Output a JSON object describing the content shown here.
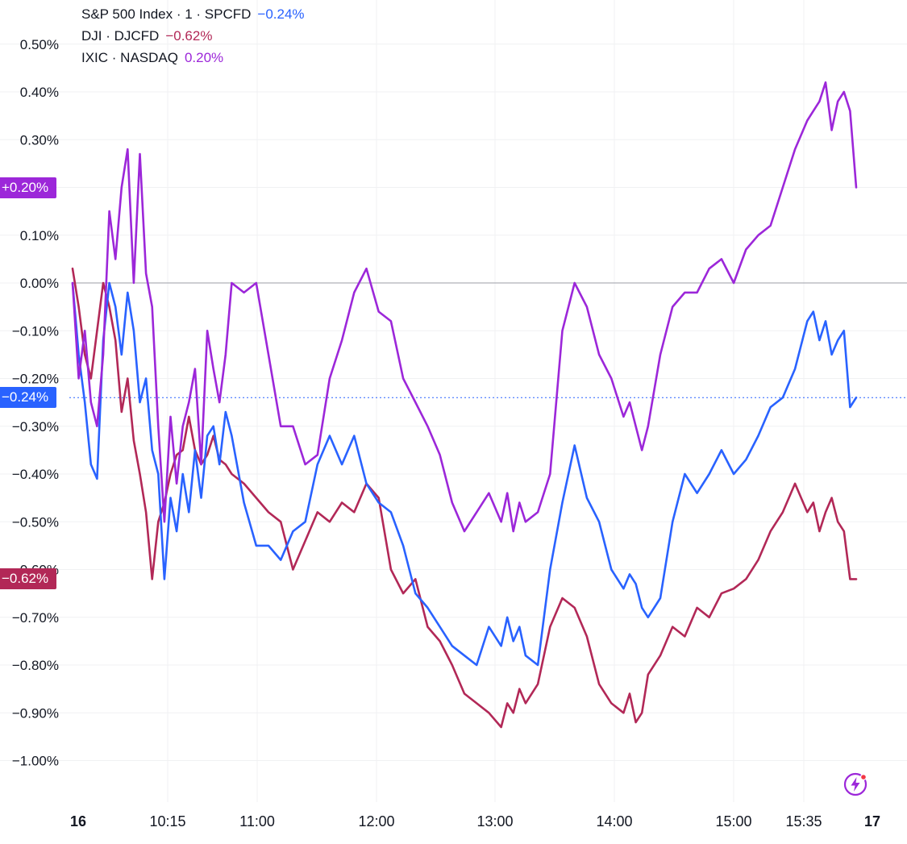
{
  "legend": [
    {
      "label": "S&P 500 Index · 1 · SPCFD",
      "value": "−0.24%",
      "color": "#2962ff"
    },
    {
      "label": "DJI · DJCFD",
      "value": "−0.62%",
      "color": "#b22857"
    },
    {
      "label": "IXIC · NASDAQ",
      "value": "0.20%",
      "color": "#9c27d9"
    }
  ],
  "badges": [
    {
      "name": "ixic-last-value-badge",
      "text": "+0.20%",
      "value": 0.2,
      "color": "#9c27d9"
    },
    {
      "name": "spx-last-value-badge",
      "text": "−0.24%",
      "value": -0.24,
      "color": "#2962ff"
    },
    {
      "name": "dji-last-value-badge",
      "text": "−0.62%",
      "value": -0.62,
      "color": "#b22857"
    }
  ],
  "chart_data": {
    "type": "line",
    "title": "",
    "xlabel": "",
    "ylabel": "",
    "unit": "%",
    "ylim": [
      -1.05,
      0.58
    ],
    "xlim": [
      9.5,
      16.1
    ],
    "grid": true,
    "y_ticks": [
      {
        "value": 0.5,
        "label": "0.50%"
      },
      {
        "value": 0.4,
        "label": "0.40%"
      },
      {
        "value": 0.3,
        "label": "0.30%"
      },
      {
        "value": 0.1,
        "label": "0.10%"
      },
      {
        "value": 0.0,
        "label": "0.00%"
      },
      {
        "value": -0.1,
        "label": "−0.10%"
      },
      {
        "value": -0.2,
        "label": "−0.20%"
      },
      {
        "value": -0.3,
        "label": "−0.30%"
      },
      {
        "value": -0.4,
        "label": "−0.40%"
      },
      {
        "value": -0.5,
        "label": "−0.50%"
      },
      {
        "value": -0.6,
        "label": "−0.60%"
      },
      {
        "value": -0.7,
        "label": "−0.70%"
      },
      {
        "value": -0.8,
        "label": "−0.80%"
      },
      {
        "value": -0.9,
        "label": "−0.90%"
      },
      {
        "value": -1.0,
        "label": "−1.00%"
      }
    ],
    "x_ticks": [
      {
        "value": 9.5,
        "label": "16",
        "bold": true
      },
      {
        "value": 10.25,
        "label": "10:15",
        "bold": false
      },
      {
        "value": 11.0,
        "label": "11:00",
        "bold": false
      },
      {
        "value": 12.0,
        "label": "12:00",
        "bold": false
      },
      {
        "value": 13.0,
        "label": "13:00",
        "bold": false
      },
      {
        "value": 14.0,
        "label": "14:00",
        "bold": false
      },
      {
        "value": 15.0,
        "label": "15:00",
        "bold": false
      },
      {
        "value": 15.5833,
        "label": "15:35",
        "bold": false
      },
      {
        "value": 16.0,
        "label": "17",
        "bold": true
      }
    ],
    "series": [
      {
        "name": "S&P 500 Index",
        "color": "#2962ff",
        "x": [
          9.5,
          9.55,
          9.6,
          9.65,
          9.7,
          9.75,
          9.8,
          9.85,
          9.9,
          9.95,
          10.0,
          10.05,
          10.1,
          10.15,
          10.2,
          10.25,
          10.3,
          10.35,
          10.4,
          10.45,
          10.5,
          10.55,
          10.6,
          10.65,
          10.7,
          10.75,
          10.8,
          10.9,
          11.0,
          11.1,
          11.2,
          11.3,
          11.4,
          11.5,
          11.6,
          11.7,
          11.8,
          11.9,
          12.0,
          12.1,
          12.2,
          12.3,
          12.4,
          12.5,
          12.6,
          12.7,
          12.8,
          12.9,
          13.0,
          13.05,
          13.1,
          13.15,
          13.2,
          13.3,
          13.4,
          13.5,
          13.6,
          13.7,
          13.8,
          13.9,
          14.0,
          14.05,
          14.1,
          14.15,
          14.2,
          14.3,
          14.4,
          14.5,
          14.6,
          14.7,
          14.8,
          14.9,
          15.0,
          15.1,
          15.2,
          15.3,
          15.4,
          15.5,
          15.55,
          15.6,
          15.65,
          15.7,
          15.75,
          15.8,
          15.85,
          15.9
        ],
        "values": [
          0.0,
          -0.15,
          -0.25,
          -0.38,
          -0.41,
          -0.12,
          0.0,
          -0.05,
          -0.15,
          -0.02,
          -0.1,
          -0.25,
          -0.2,
          -0.35,
          -0.4,
          -0.62,
          -0.45,
          -0.52,
          -0.4,
          -0.48,
          -0.35,
          -0.45,
          -0.32,
          -0.3,
          -0.38,
          -0.27,
          -0.32,
          -0.46,
          -0.55,
          -0.55,
          -0.58,
          -0.52,
          -0.5,
          -0.38,
          -0.32,
          -0.38,
          -0.32,
          -0.42,
          -0.46,
          -0.48,
          -0.55,
          -0.65,
          -0.68,
          -0.72,
          -0.76,
          -0.78,
          -0.8,
          -0.72,
          -0.76,
          -0.7,
          -0.75,
          -0.72,
          -0.78,
          -0.8,
          -0.6,
          -0.46,
          -0.34,
          -0.45,
          -0.5,
          -0.6,
          -0.64,
          -0.61,
          -0.63,
          -0.68,
          -0.7,
          -0.66,
          -0.5,
          -0.4,
          -0.44,
          -0.4,
          -0.35,
          -0.4,
          -0.37,
          -0.32,
          -0.26,
          -0.24,
          -0.18,
          -0.08,
          -0.06,
          -0.12,
          -0.08,
          -0.15,
          -0.12,
          -0.1,
          -0.26,
          -0.24
        ]
      },
      {
        "name": "DJI",
        "color": "#b22857",
        "x": [
          9.5,
          9.55,
          9.6,
          9.65,
          9.7,
          9.75,
          9.8,
          9.85,
          9.9,
          9.95,
          10.0,
          10.05,
          10.1,
          10.15,
          10.2,
          10.25,
          10.3,
          10.35,
          10.4,
          10.45,
          10.5,
          10.55,
          10.6,
          10.65,
          10.7,
          10.75,
          10.8,
          10.9,
          11.0,
          11.1,
          11.2,
          11.3,
          11.4,
          11.5,
          11.6,
          11.7,
          11.8,
          11.9,
          12.0,
          12.1,
          12.2,
          12.3,
          12.4,
          12.5,
          12.6,
          12.7,
          12.8,
          12.9,
          13.0,
          13.05,
          13.1,
          13.15,
          13.2,
          13.3,
          13.4,
          13.5,
          13.6,
          13.7,
          13.8,
          13.9,
          14.0,
          14.05,
          14.1,
          14.15,
          14.2,
          14.3,
          14.4,
          14.5,
          14.6,
          14.7,
          14.8,
          14.9,
          15.0,
          15.1,
          15.2,
          15.3,
          15.4,
          15.5,
          15.55,
          15.6,
          15.65,
          15.7,
          15.75,
          15.8,
          15.85,
          15.9
        ],
        "values": [
          0.03,
          -0.05,
          -0.15,
          -0.2,
          -0.1,
          0.0,
          -0.05,
          -0.12,
          -0.27,
          -0.2,
          -0.33,
          -0.4,
          -0.48,
          -0.62,
          -0.5,
          -0.46,
          -0.4,
          -0.36,
          -0.35,
          -0.28,
          -0.35,
          -0.38,
          -0.36,
          -0.32,
          -0.37,
          -0.38,
          -0.4,
          -0.42,
          -0.45,
          -0.48,
          -0.5,
          -0.6,
          -0.54,
          -0.48,
          -0.5,
          -0.46,
          -0.48,
          -0.42,
          -0.45,
          -0.6,
          -0.65,
          -0.62,
          -0.72,
          -0.75,
          -0.8,
          -0.86,
          -0.88,
          -0.9,
          -0.93,
          -0.88,
          -0.9,
          -0.85,
          -0.88,
          -0.84,
          -0.72,
          -0.66,
          -0.68,
          -0.74,
          -0.84,
          -0.88,
          -0.9,
          -0.86,
          -0.92,
          -0.9,
          -0.82,
          -0.78,
          -0.72,
          -0.74,
          -0.68,
          -0.7,
          -0.65,
          -0.64,
          -0.62,
          -0.58,
          -0.52,
          -0.48,
          -0.42,
          -0.48,
          -0.46,
          -0.52,
          -0.48,
          -0.45,
          -0.5,
          -0.52,
          -0.62,
          -0.62
        ]
      },
      {
        "name": "IXIC",
        "color": "#9c27d9",
        "x": [
          9.5,
          9.55,
          9.6,
          9.65,
          9.7,
          9.75,
          9.8,
          9.85,
          9.9,
          9.95,
          10.0,
          10.05,
          10.1,
          10.15,
          10.2,
          10.25,
          10.3,
          10.35,
          10.4,
          10.45,
          10.5,
          10.55,
          10.6,
          10.65,
          10.7,
          10.75,
          10.8,
          10.9,
          11.0,
          11.1,
          11.2,
          11.3,
          11.4,
          11.5,
          11.6,
          11.7,
          11.8,
          11.9,
          12.0,
          12.1,
          12.2,
          12.3,
          12.4,
          12.5,
          12.6,
          12.7,
          12.8,
          12.9,
          13.0,
          13.05,
          13.1,
          13.15,
          13.2,
          13.3,
          13.4,
          13.5,
          13.6,
          13.7,
          13.8,
          13.9,
          14.0,
          14.05,
          14.1,
          14.15,
          14.2,
          14.3,
          14.4,
          14.5,
          14.6,
          14.7,
          14.8,
          14.9,
          15.0,
          15.1,
          15.2,
          15.3,
          15.4,
          15.5,
          15.55,
          15.6,
          15.65,
          15.7,
          15.75,
          15.8,
          15.85,
          15.9
        ],
        "values": [
          0.0,
          -0.2,
          -0.1,
          -0.25,
          -0.3,
          -0.15,
          0.15,
          0.05,
          0.2,
          0.28,
          0.0,
          0.27,
          0.02,
          -0.05,
          -0.3,
          -0.5,
          -0.28,
          -0.42,
          -0.3,
          -0.25,
          -0.18,
          -0.38,
          -0.1,
          -0.18,
          -0.25,
          -0.15,
          0.0,
          -0.02,
          0.0,
          -0.15,
          -0.3,
          -0.3,
          -0.38,
          -0.36,
          -0.2,
          -0.12,
          -0.02,
          0.03,
          -0.06,
          -0.08,
          -0.2,
          -0.25,
          -0.3,
          -0.36,
          -0.46,
          -0.52,
          -0.48,
          -0.44,
          -0.5,
          -0.44,
          -0.52,
          -0.46,
          -0.5,
          -0.48,
          -0.4,
          -0.1,
          0.0,
          -0.05,
          -0.15,
          -0.2,
          -0.28,
          -0.25,
          -0.3,
          -0.35,
          -0.3,
          -0.15,
          -0.05,
          -0.02,
          -0.02,
          0.03,
          0.05,
          0.0,
          0.07,
          0.1,
          0.12,
          0.2,
          0.28,
          0.34,
          0.36,
          0.38,
          0.42,
          0.32,
          0.38,
          0.4,
          0.36,
          0.2
        ]
      }
    ]
  }
}
